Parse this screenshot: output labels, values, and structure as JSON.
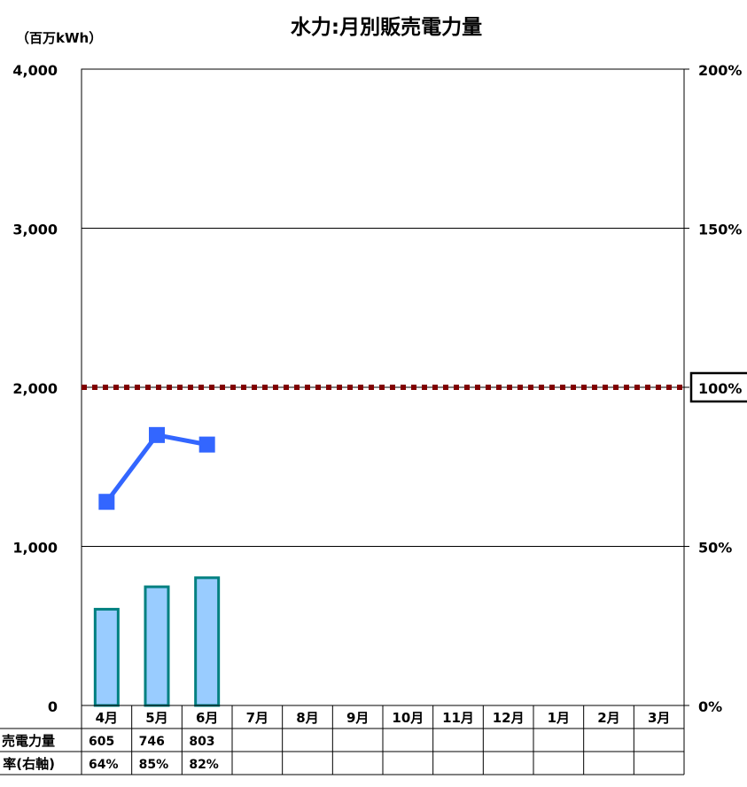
{
  "chart_data": {
    "type": "bar",
    "title": "水力:月別販売電力量",
    "unit_label": "（百万kWh）",
    "categories": [
      "4月",
      "5月",
      "6月",
      "7月",
      "8月",
      "9月",
      "10月",
      "11月",
      "12月",
      "1月",
      "2月",
      "3月"
    ],
    "series": [
      {
        "name": "販売電力量",
        "type": "bar",
        "axis": "left",
        "values": [
          605,
          746,
          803,
          null,
          null,
          null,
          null,
          null,
          null,
          null,
          null,
          null
        ],
        "color": "#99ccff",
        "border": "#008080"
      },
      {
        "name": "対計画比率（右軸）",
        "type": "line",
        "axis": "right",
        "values": [
          64,
          85,
          82,
          null,
          null,
          null,
          null,
          null,
          null,
          null,
          null,
          null
        ],
        "color": "#3366ff"
      }
    ],
    "left_axis": {
      "min": 0,
      "max": 4000,
      "ticks": [
        "0",
        "1,000",
        "2,000",
        "3,000",
        "4,000"
      ]
    },
    "right_axis": {
      "min": 0,
      "max": 200,
      "ticks": [
        "0%",
        "50%",
        "100%",
        "150%",
        "200%"
      ],
      "unit": "%"
    },
    "reference_line": {
      "value": 100,
      "axis": "right",
      "label": "100%",
      "color": "#800000"
    },
    "grid": true,
    "table": {
      "row_labels": [
        "販売電力量",
        "対計画比率(右軸)"
      ],
      "visible_row_labels": [
        "売電力量",
        "率(右軸)"
      ],
      "rows": [
        [
          "605",
          "746",
          "803",
          "",
          "",
          "",
          "",
          "",
          "",
          "",
          "",
          ""
        ],
        [
          "64%",
          "85%",
          "82%",
          "",
          "",
          "",
          "",
          "",
          "",
          "",
          "",
          ""
        ]
      ]
    }
  }
}
